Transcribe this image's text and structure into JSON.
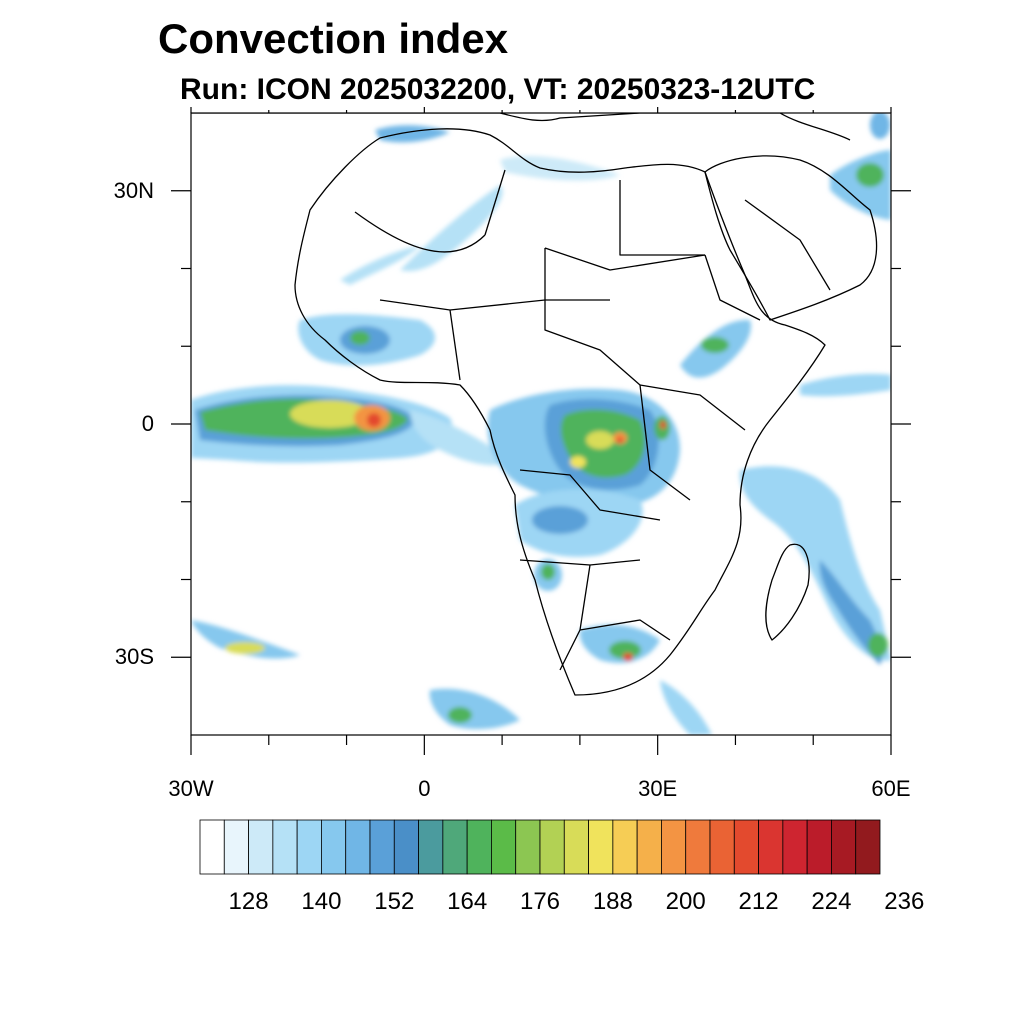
{
  "title": "Convection index",
  "subtitle": "Run: ICON 2025032200,  VT: 20250323-12UTC",
  "map": {
    "lat_labels": [
      {
        "value": 30,
        "text": "30N"
      },
      {
        "value": 0,
        "text": "0"
      },
      {
        "value": -30,
        "text": "30S"
      }
    ],
    "lon_labels": [
      {
        "value": -30,
        "text": "30W"
      },
      {
        "value": 0,
        "text": "0"
      },
      {
        "value": 30,
        "text": "30E"
      },
      {
        "value": 60,
        "text": "60E"
      }
    ],
    "lon_range": [
      -30,
      60
    ],
    "lat_range": [
      -40,
      40
    ]
  },
  "colorbar": {
    "colors": [
      "#ffffff",
      "#e8f5fc",
      "#cdeaf8",
      "#b5e1f6",
      "#9dd6f4",
      "#86c8ee",
      "#70b6e6",
      "#5aa0d8",
      "#4a8fc8",
      "#4b9b9e",
      "#4fa87a",
      "#4fb35c",
      "#5bbb48",
      "#8cc652",
      "#b2d154",
      "#d8dc58",
      "#f0e35c",
      "#f6cd55",
      "#f5b04a",
      "#f39443",
      "#ef7a3c",
      "#ea6334",
      "#e34a2e",
      "#da3530",
      "#ce2530",
      "#bb1c2a",
      "#a71a23",
      "#921a1e"
    ],
    "tick_labels": [
      "128",
      "140",
      "152",
      "164",
      "176",
      "188",
      "200",
      "212",
      "224",
      "236"
    ]
  }
}
